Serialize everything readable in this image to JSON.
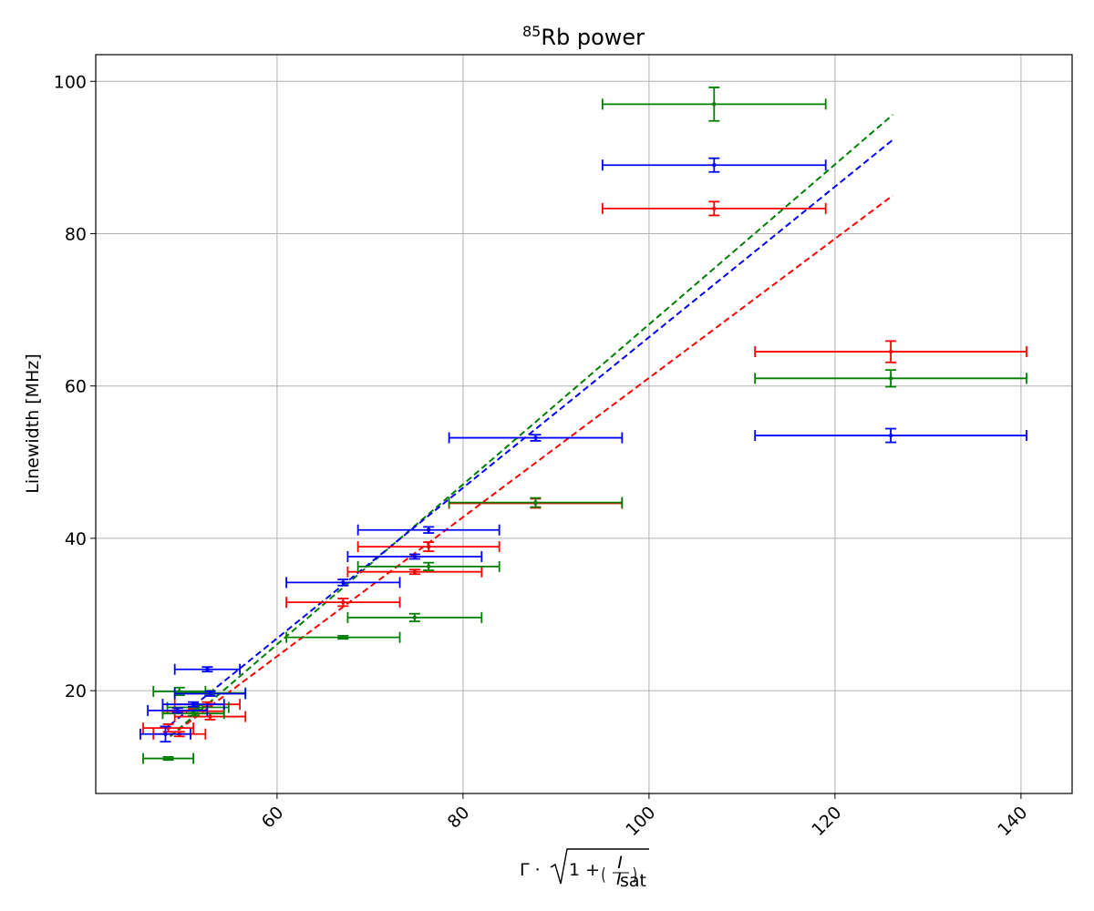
{
  "chart_data": {
    "type": "scatter",
    "title_prefix": "85",
    "title_main": "Rb power",
    "xlabel": "Γ·√(1 + (I / I_sat))",
    "ylabel": "Linewidth [MHz]",
    "xlim": [
      40.5,
      145.5
    ],
    "ylim": [
      6.5,
      103.5
    ],
    "xticks": [
      60,
      80,
      100,
      120,
      140
    ],
    "yticks": [
      20,
      40,
      60,
      80,
      100
    ],
    "grid": true,
    "series": [
      {
        "color": "#ff0000",
        "points": [
          {
            "x": 126.0,
            "y": 64.5,
            "xerr": 14.6,
            "yerr": 1.4
          },
          {
            "x": 107.0,
            "y": 83.3,
            "xerr": 12.0,
            "yerr": 0.9
          },
          {
            "x": 87.8,
            "y": 44.6,
            "xerr": 9.3,
            "yerr": 0.6
          },
          {
            "x": 76.3,
            "y": 38.9,
            "xerr": 7.6,
            "yerr": 0.6
          },
          {
            "x": 74.8,
            "y": 35.6,
            "xerr": 7.2,
            "yerr": 0.3
          },
          {
            "x": 67.1,
            "y": 31.6,
            "xerr": 6.1,
            "yerr": 0.5
          },
          {
            "x": 52.8,
            "y": 16.6,
            "xerr": 3.8,
            "yerr": 0.4
          },
          {
            "x": 52.5,
            "y": 18.2,
            "xerr": 3.5,
            "yerr": 0.3
          },
          {
            "x": 51.0,
            "y": 17.3,
            "xerr": 3.3,
            "yerr": 0.3
          },
          {
            "x": 49.5,
            "y": 14.3,
            "xerr": 2.8,
            "yerr": 0.3
          },
          {
            "x": 48.3,
            "y": 15.1,
            "xerr": 2.7,
            "yerr": 0.5
          }
        ],
        "fit": {
          "x": [
            48.5,
            126.2
          ],
          "y": [
            14.0,
            85.0
          ]
        }
      },
      {
        "color": "#008000",
        "points": [
          {
            "x": 107.0,
            "y": 97.0,
            "xerr": 12.0,
            "yerr": 2.2
          },
          {
            "x": 126.0,
            "y": 61.0,
            "xerr": 14.6,
            "yerr": 1.1
          },
          {
            "x": 87.8,
            "y": 44.7,
            "xerr": 9.3,
            "yerr": 0.6
          },
          {
            "x": 76.3,
            "y": 36.3,
            "xerr": 7.6,
            "yerr": 0.5
          },
          {
            "x": 74.8,
            "y": 29.6,
            "xerr": 7.2,
            "yerr": 0.5
          },
          {
            "x": 67.1,
            "y": 27.0,
            "xerr": 6.1,
            "yerr": 0.2
          },
          {
            "x": 49.5,
            "y": 19.9,
            "xerr": 2.8,
            "yerr": 0.5
          },
          {
            "x": 52.8,
            "y": 19.7,
            "xerr": 3.8,
            "yerr": 0.3
          },
          {
            "x": 51.5,
            "y": 17.8,
            "xerr": 3.3,
            "yerr": 0.3
          },
          {
            "x": 51.0,
            "y": 17.0,
            "xerr": 3.3,
            "yerr": 0.3
          },
          {
            "x": 48.3,
            "y": 11.1,
            "xerr": 2.7,
            "yerr": 0.2
          }
        ],
        "fit": {
          "x": [
            48.5,
            126.2
          ],
          "y": [
            14.0,
            95.6
          ]
        }
      },
      {
        "color": "#0000ff",
        "points": [
          {
            "x": 107.0,
            "y": 89.0,
            "xerr": 12.0,
            "yerr": 0.9
          },
          {
            "x": 126.0,
            "y": 53.5,
            "xerr": 14.6,
            "yerr": 0.9
          },
          {
            "x": 87.8,
            "y": 53.2,
            "xerr": 9.3,
            "yerr": 0.4
          },
          {
            "x": 76.3,
            "y": 41.1,
            "xerr": 7.6,
            "yerr": 0.4
          },
          {
            "x": 74.8,
            "y": 37.6,
            "xerr": 7.2,
            "yerr": 0.3
          },
          {
            "x": 67.1,
            "y": 34.2,
            "xerr": 6.1,
            "yerr": 0.4
          },
          {
            "x": 52.5,
            "y": 22.8,
            "xerr": 3.5,
            "yerr": 0.3
          },
          {
            "x": 52.8,
            "y": 19.6,
            "xerr": 3.8,
            "yerr": 0.3
          },
          {
            "x": 51.0,
            "y": 18.2,
            "xerr": 3.3,
            "yerr": 0.3
          },
          {
            "x": 49.3,
            "y": 17.4,
            "xerr": 3.2,
            "yerr": 0.3
          },
          {
            "x": 48.0,
            "y": 14.3,
            "xerr": 2.7,
            "yerr": 1.0
          }
        ],
        "fit": {
          "x": [
            48.5,
            126.2
          ],
          "y": [
            15.5,
            92.3
          ]
        }
      }
    ]
  }
}
